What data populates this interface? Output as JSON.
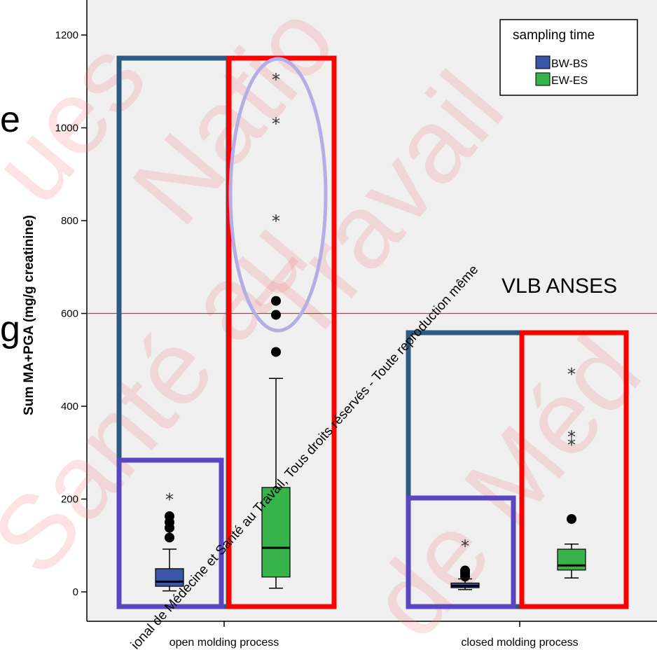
{
  "chart_data": {
    "type": "box",
    "categories": [
      "open molding process",
      "closed molding process"
    ],
    "ylabel": "Sum MA+PGA (mg/g creatinine)",
    "ylim": [
      -60,
      1240
    ],
    "yticks": [
      0,
      200,
      400,
      600,
      800,
      1000,
      1200
    ],
    "legend": {
      "title": "sampling time",
      "position": "top-right"
    },
    "series": [
      {
        "name": "BW-BS",
        "color": "#3b56a6",
        "boxes": [
          {
            "category": "open molding process",
            "min": 2,
            "q1": 12,
            "median": 22,
            "q3": 50,
            "max": 92,
            "outliers": [
              117,
              138,
              150,
              163
            ],
            "extremes": [
              200
            ]
          },
          {
            "category": "closed molding process",
            "min": 5,
            "q1": 9,
            "median": 13,
            "q3": 19,
            "max": 28,
            "outliers": [
              33,
              40,
              46
            ],
            "extremes": [
              100
            ]
          }
        ]
      },
      {
        "name": "EW-ES",
        "color": "#38b24a",
        "boxes": [
          {
            "category": "open molding process",
            "min": 8,
            "q1": 32,
            "median": 95,
            "q3": 225,
            "max": 460,
            "outliers": [
              517,
              597,
              627
            ],
            "extremes": [
              800,
              1010,
              1105
            ]
          },
          {
            "category": "closed molding process",
            "min": 30,
            "q1": 47,
            "median": 57,
            "q3": 92,
            "max": 103,
            "outliers": [
              157
            ],
            "extremes": [
              318,
              335,
              470
            ]
          }
        ]
      }
    ],
    "reference_line": {
      "value": 600,
      "label": "VLB  ANSES",
      "color": "#c83a3a"
    }
  },
  "annotation_colors": {
    "outer_box_blue": "#2e5a82",
    "outer_box_red": "#ff0000",
    "inner_box_purple": "#5a46c0",
    "ellipse": "#b4aee6"
  },
  "edge_text": [
    "e",
    "g"
  ],
  "watermark": {
    "large": [
      "ues",
      "Natio",
      "Santé au",
      "Travail",
      "de Méd"
    ],
    "line1": "ional de Médecine et Santé au Travail, Tous droits réservés - Toute reproduction même"
  }
}
